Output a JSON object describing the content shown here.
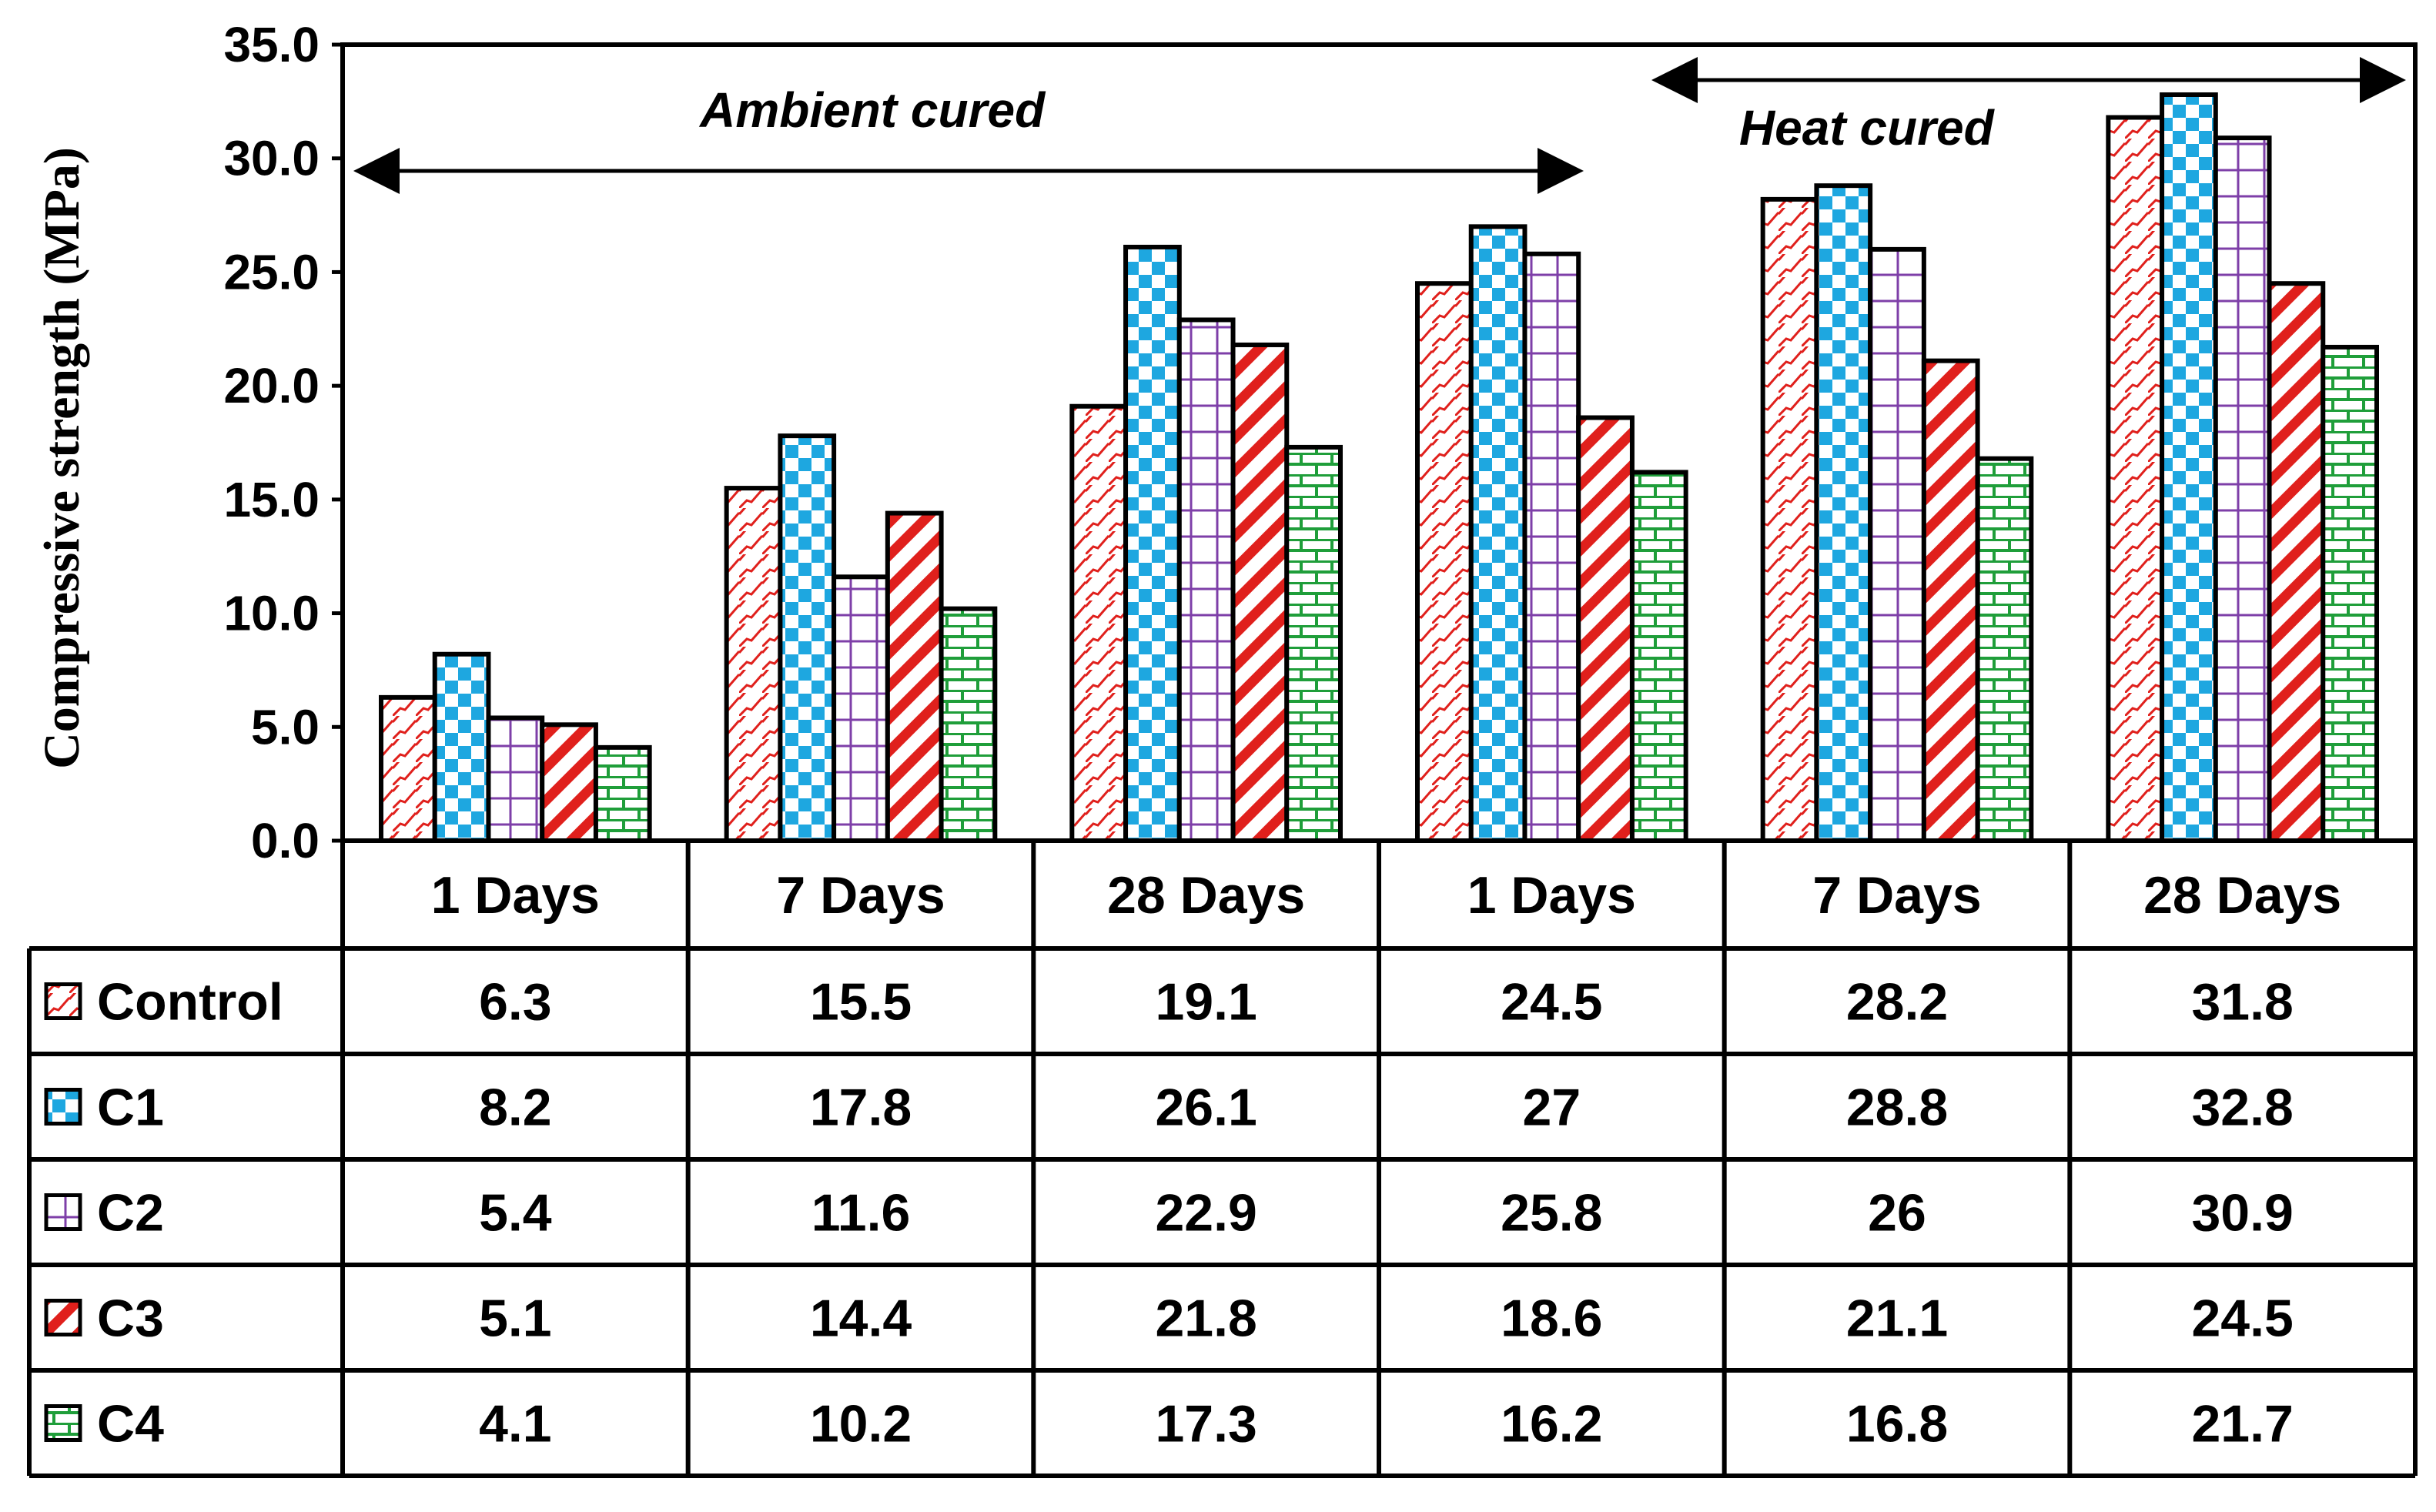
{
  "chart_data": {
    "type": "bar",
    "title": "",
    "xlabel": "",
    "ylabel": "Compressive strength (MPa)",
    "ylim": [
      0,
      35
    ],
    "yticks": [
      "0.0",
      "5.0",
      "10.0",
      "15.0",
      "20.0",
      "25.0",
      "30.0",
      "35.0"
    ],
    "categories": [
      "1 Days",
      "7 Days",
      "28 Days",
      "1 Days",
      "7 Days",
      "28 Days"
    ],
    "series": [
      {
        "name": "Control",
        "values": [
          6.3,
          15.5,
          19.1,
          24.5,
          28.2,
          31.8
        ],
        "labels": [
          "6.3",
          "15.5",
          "19.1",
          "24.5",
          "28.2",
          "31.8"
        ],
        "color": "#e0201c",
        "pattern": "zigzag"
      },
      {
        "name": "C1",
        "values": [
          8.2,
          17.8,
          26.1,
          27,
          28.8,
          32.8
        ],
        "labels": [
          "8.2",
          "17.8",
          "26.1",
          "27",
          "28.8",
          "32.8"
        ],
        "color": "#1ea7e0",
        "pattern": "checker"
      },
      {
        "name": "C2",
        "values": [
          5.4,
          11.6,
          22.9,
          25.8,
          26,
          30.9
        ],
        "labels": [
          "5.4",
          "11.6",
          "22.9",
          "25.8",
          "26",
          "30.9"
        ],
        "color": "#7e3fa8",
        "pattern": "grid"
      },
      {
        "name": "C3",
        "values": [
          5.1,
          14.4,
          21.8,
          18.6,
          21.1,
          24.5
        ],
        "labels": [
          "5.1",
          "14.4",
          "21.8",
          "18.6",
          "21.1",
          "24.5"
        ],
        "color": "#e0201c",
        "pattern": "diagonal"
      },
      {
        "name": "C4",
        "values": [
          4.1,
          10.2,
          17.3,
          16.2,
          16.8,
          21.7
        ],
        "labels": [
          "4.1",
          "10.2",
          "17.3",
          "16.2",
          "16.8",
          "21.7"
        ],
        "color": "#1f9e3a",
        "pattern": "brick"
      }
    ],
    "annotations": [
      {
        "text": "Ambient cured",
        "span": "1 Days–28 Days (first group)"
      },
      {
        "text": "Heat cured",
        "span": "1 Days–28 Days (second group)"
      }
    ],
    "data_table": true,
    "legend": "in data table rows"
  }
}
